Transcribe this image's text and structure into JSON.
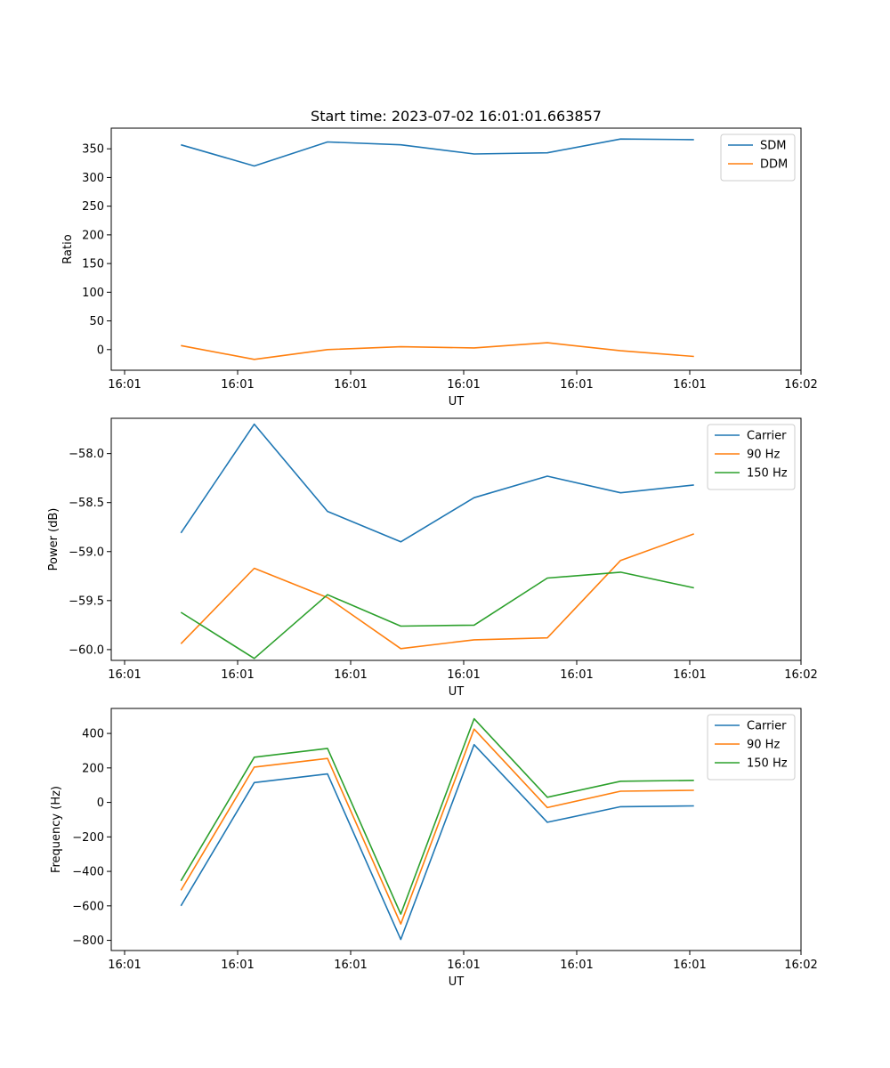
{
  "figure": {
    "title": "Start time: 2023-07-02 16:01:01.663857",
    "colors": {
      "series1": "#1f77b4",
      "series2": "#ff7f0e",
      "series3": "#2ca02c"
    }
  },
  "chart_data": [
    {
      "type": "line",
      "title": "Start time: 2023-07-02 16:01:01.663857",
      "xlabel": "UT",
      "ylabel": "Ratio",
      "x_tick_labels": [
        "16:01",
        "16:01",
        "16:01",
        "16:01",
        "16:01",
        "16:01",
        "16:02"
      ],
      "xlim": [
        0,
        6
      ],
      "x": [
        0.5,
        1.15,
        1.8,
        2.45,
        3.1,
        3.75,
        4.4,
        5.05
      ],
      "ylim": [
        -36,
        386
      ],
      "yticks": [
        0,
        50,
        100,
        150,
        200,
        250,
        300,
        350
      ],
      "ytick_labels": [
        "0",
        "50",
        "100",
        "150",
        "200",
        "250",
        "300",
        "350"
      ],
      "legend_position": "top-right",
      "series": [
        {
          "name": "SDM",
          "color": "#1f77b4",
          "values": [
            357,
            320,
            362,
            357,
            341,
            343,
            367,
            366
          ]
        },
        {
          "name": "DDM",
          "color": "#ff7f0e",
          "values": [
            7,
            -17,
            0,
            5,
            3,
            12,
            -2,
            -12
          ]
        }
      ]
    },
    {
      "type": "line",
      "title": "",
      "xlabel": "UT",
      "ylabel": "Power (dB)",
      "x_tick_labels": [
        "16:01",
        "16:01",
        "16:01",
        "16:01",
        "16:01",
        "16:01",
        "16:02"
      ],
      "xlim": [
        0,
        6
      ],
      "x": [
        0.5,
        1.15,
        1.8,
        2.45,
        3.1,
        3.75,
        4.4,
        5.05
      ],
      "ylim": [
        -60.11,
        -57.64
      ],
      "yticks": [
        -60.0,
        -59.5,
        -59.0,
        -58.5,
        -58.0
      ],
      "ytick_labels": [
        "−60.0",
        "−59.5",
        "−59.0",
        "−58.5",
        "−58.0"
      ],
      "legend_position": "top-right",
      "series": [
        {
          "name": "Carrier",
          "color": "#1f77b4",
          "values": [
            -58.81,
            -57.7,
            -58.59,
            -58.9,
            -58.45,
            -58.23,
            -58.4,
            -58.32
          ]
        },
        {
          "name": "90 Hz",
          "color": "#ff7f0e",
          "values": [
            -59.94,
            -59.17,
            -59.47,
            -59.99,
            -59.9,
            -59.88,
            -59.09,
            -58.82
          ]
        },
        {
          "name": "150 Hz",
          "color": "#2ca02c",
          "values": [
            -59.62,
            -60.09,
            -59.44,
            -59.76,
            -59.75,
            -59.27,
            -59.21,
            -59.37
          ]
        }
      ]
    },
    {
      "type": "line",
      "title": "",
      "xlabel": "UT",
      "ylabel": "Frequency (Hz)",
      "x_tick_labels": [
        "16:01",
        "16:01",
        "16:01",
        "16:01",
        "16:01",
        "16:01",
        "16:02"
      ],
      "xlim": [
        0,
        6
      ],
      "x": [
        0.5,
        1.15,
        1.8,
        2.45,
        3.1,
        3.75,
        4.4,
        5.05
      ],
      "ylim": [
        -859,
        545
      ],
      "yticks": [
        -800,
        -600,
        -400,
        -200,
        0,
        200,
        400
      ],
      "ytick_labels": [
        "−800",
        "−600",
        "−400",
        "−200",
        "0",
        "200",
        "400"
      ],
      "legend_position": "top-right",
      "series": [
        {
          "name": "Carrier",
          "color": "#1f77b4",
          "values": [
            -600,
            115,
            165,
            -795,
            335,
            -115,
            -25,
            -20
          ]
        },
        {
          "name": "90 Hz",
          "color": "#ff7f0e",
          "values": [
            -510,
            205,
            255,
            -705,
            425,
            -30,
            65,
            70
          ]
        },
        {
          "name": "150 Hz",
          "color": "#2ca02c",
          "values": [
            -455,
            262,
            313,
            -648,
            485,
            30,
            123,
            128
          ]
        }
      ]
    }
  ]
}
